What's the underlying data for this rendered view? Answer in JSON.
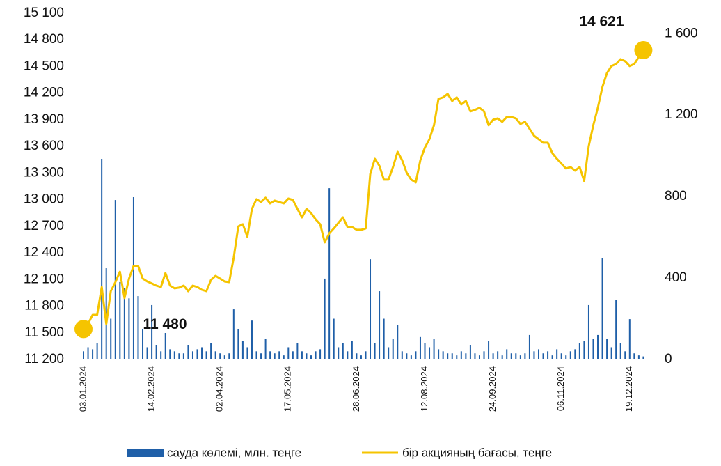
{
  "chart_data": {
    "type": "bar-line",
    "categories": [
      "03.01.2024",
      null,
      null,
      null,
      null,
      null,
      null,
      null,
      null,
      null,
      null,
      null,
      null,
      null,
      null,
      "14.02.2024",
      null,
      null,
      null,
      null,
      null,
      null,
      null,
      null,
      null,
      null,
      null,
      null,
      null,
      null,
      "02.04.2024",
      null,
      null,
      null,
      null,
      null,
      null,
      null,
      null,
      null,
      null,
      null,
      null,
      null,
      null,
      "17.05.2024",
      null,
      null,
      null,
      null,
      null,
      null,
      null,
      null,
      null,
      null,
      null,
      null,
      null,
      null,
      "28.06.2024",
      null,
      null,
      null,
      null,
      null,
      null,
      null,
      null,
      null,
      null,
      null,
      null,
      null,
      null,
      "12.08.2024",
      null,
      null,
      null,
      null,
      null,
      null,
      null,
      null,
      null,
      null,
      null,
      null,
      null,
      null,
      "24.09.2024",
      null,
      null,
      null,
      null,
      null,
      null,
      null,
      null,
      null,
      null,
      null,
      null,
      null,
      null,
      "06.11.2024",
      null,
      null,
      null,
      null,
      null,
      null,
      null,
      null,
      null,
      null,
      null,
      null,
      null,
      null,
      "19.12.2024",
      null,
      null,
      null
    ],
    "series": [
      {
        "name": "сауда көлемі, млн. теңге",
        "type": "bar",
        "axis": "y2",
        "color": "#1f5fa8",
        "values": [
          40,
          60,
          50,
          80,
          985,
          448,
          200,
          783,
          380,
          350,
          300,
          797,
          311,
          150,
          60,
          267,
          70,
          40,
          130,
          50,
          40,
          30,
          30,
          70,
          40,
          50,
          60,
          40,
          80,
          40,
          30,
          20,
          30,
          246,
          150,
          90,
          60,
          191,
          40,
          30,
          100,
          40,
          30,
          40,
          20,
          60,
          40,
          80,
          40,
          30,
          20,
          40,
          50,
          397,
          841,
          200,
          60,
          80,
          40,
          90,
          30,
          20,
          40,
          492,
          80,
          335,
          200,
          60,
          100,
          171,
          40,
          30,
          20,
          40,
          110,
          80,
          60,
          100,
          50,
          40,
          30,
          30,
          20,
          40,
          30,
          70,
          30,
          20,
          40,
          90,
          30,
          40,
          20,
          50,
          30,
          30,
          20,
          30,
          120,
          40,
          50,
          30,
          40,
          20,
          50,
          30,
          20,
          40,
          50,
          80,
          90,
          267,
          100,
          120,
          499,
          100,
          60,
          294,
          80,
          40,
          198,
          30,
          20,
          15
        ]
      },
      {
        "name": "бір акцияның бағасы, теңге",
        "type": "line",
        "axis": "y",
        "color": "#f5c400",
        "values": [
          11480,
          11600,
          11702,
          11702,
          12016,
          11600,
          11969,
          12071,
          12189,
          11891,
          12111,
          12252,
          12252,
          12111,
          12079,
          12056,
          12032,
          12016,
          12173,
          12032,
          12001,
          12009,
          12032,
          11969,
          12032,
          12016,
          11985,
          11969,
          12095,
          12142,
          12111,
          12079,
          12071,
          12346,
          12699,
          12723,
          12582,
          12896,
          13006,
          12974,
          13021,
          12958,
          12990,
          12974,
          12958,
          13013,
          12998,
          12896,
          12801,
          12896,
          12849,
          12778,
          12723,
          12519,
          12621,
          12676,
          12739,
          12801,
          12692,
          12692,
          12660,
          12660,
          12676,
          13288,
          13461,
          13382,
          13225,
          13225,
          13367,
          13539,
          13445,
          13304,
          13225,
          13194,
          13445,
          13586,
          13681,
          13838,
          14136,
          14152,
          14191,
          14112,
          14152,
          14073,
          14112,
          13995,
          14011,
          14034,
          13995,
          13838,
          13901,
          13916,
          13877,
          13932,
          13932,
          13916,
          13853,
          13877,
          13799,
          13720,
          13681,
          13641,
          13641,
          13524,
          13461,
          13406,
          13351,
          13367,
          13327,
          13367,
          13210,
          13602,
          13838,
          14034,
          14269,
          14426,
          14505,
          14528,
          14583,
          14559,
          14505,
          14528,
          14607,
          14621
        ],
        "value_labels": [
          "11 480",
          null,
          null,
          null,
          null,
          null,
          null,
          null,
          null,
          null,
          null,
          null,
          null,
          null,
          null,
          null,
          null,
          null,
          null,
          null,
          null,
          null,
          null,
          null,
          null,
          null,
          null,
          null,
          null,
          null,
          null,
          null,
          null,
          null,
          null,
          null,
          null,
          null,
          null,
          null,
          null,
          null,
          null,
          null,
          null,
          null,
          null,
          null,
          null,
          null,
          null,
          null,
          null,
          null,
          null,
          null,
          null,
          null,
          null,
          null,
          null,
          null,
          null,
          null,
          null,
          null,
          null,
          null,
          null,
          null,
          null,
          null,
          null,
          null,
          null,
          null,
          null,
          null,
          null,
          null,
          null,
          null,
          null,
          null,
          null,
          null,
          null,
          null,
          null,
          null,
          null,
          null,
          null,
          null,
          null,
          null,
          null,
          null,
          null,
          null,
          null,
          null,
          null,
          null,
          null,
          null,
          null,
          null,
          null,
          null,
          null,
          null,
          null,
          null,
          null,
          null,
          null,
          null,
          null,
          null,
          null,
          null,
          null,
          "14 621"
        ]
      }
    ],
    "ylim": [
      11200,
      15100
    ],
    "yticks": [
      {
        "value": 11200,
        "label": "11 200"
      },
      {
        "value": 11500,
        "label": "11 500"
      },
      {
        "value": 11800,
        "label": "11 800"
      },
      {
        "value": 12100,
        "label": "12 100"
      },
      {
        "value": 12400,
        "label": "12 400"
      },
      {
        "value": 12700,
        "label": "12 700"
      },
      {
        "value": 13000,
        "label": "13 000"
      },
      {
        "value": 13300,
        "label": "13 300"
      },
      {
        "value": 13600,
        "label": "13 600"
      },
      {
        "value": 13900,
        "label": "13 900"
      },
      {
        "value": 14200,
        "label": "14 200"
      },
      {
        "value": 14500,
        "label": "14 500"
      },
      {
        "value": 14800,
        "label": "14 800"
      },
      {
        "value": 15100,
        "label": "15 100"
      }
    ],
    "y2lim": [
      0,
      1700
    ],
    "y2ticks": [
      0,
      400,
      800,
      {
        "value": 1200,
        "label": "1 200"
      },
      {
        "value": 1600,
        "label": "1 600"
      }
    ],
    "grid": false,
    "legend": "bottom"
  }
}
